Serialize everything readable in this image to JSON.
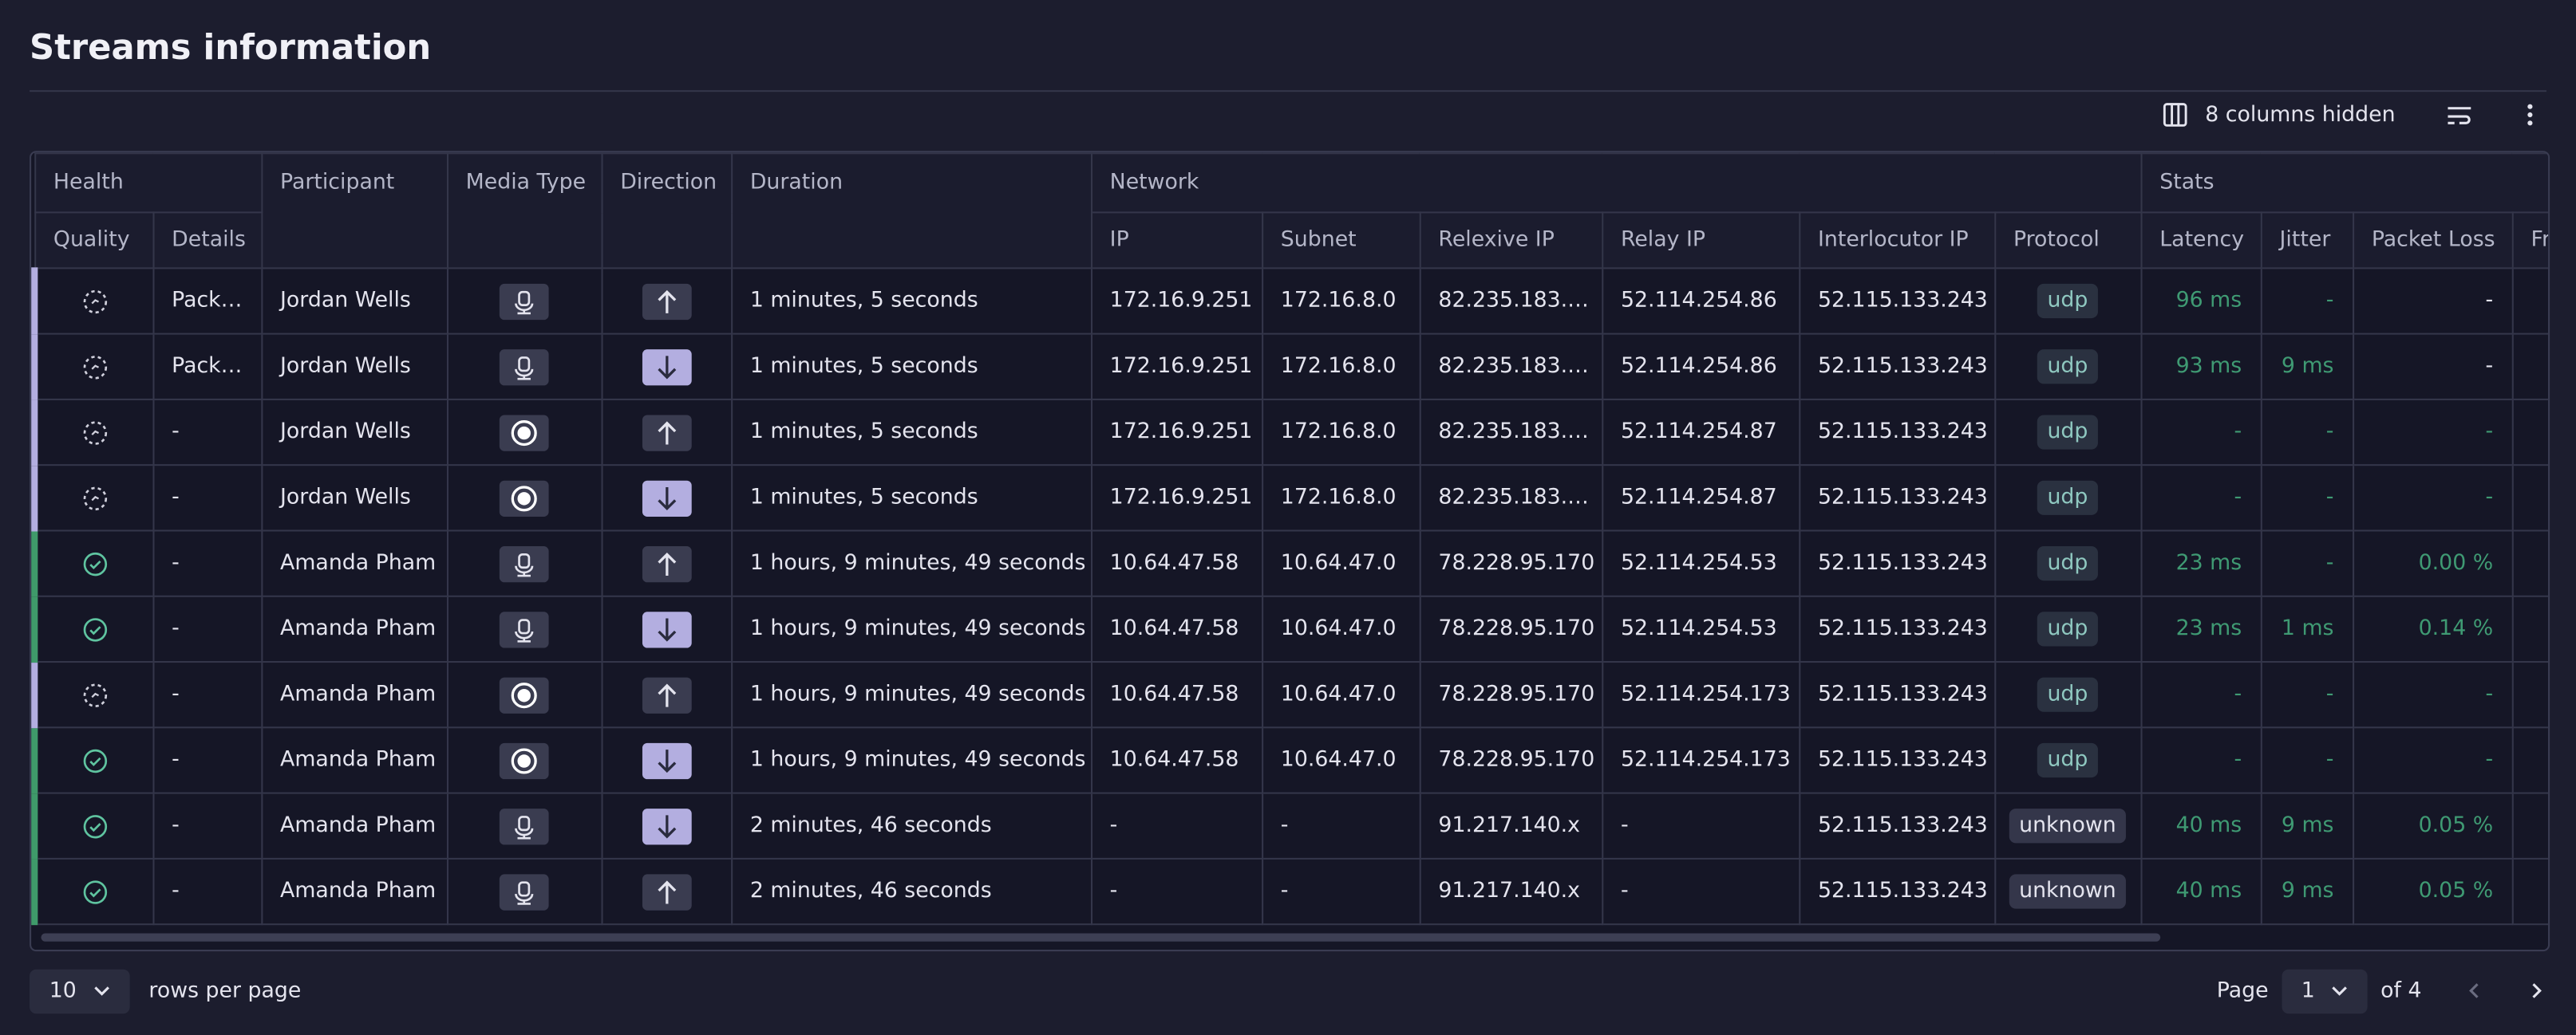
{
  "header": {
    "title": "Streams information"
  },
  "toolbar": {
    "hidden_columns": "8 columns hidden"
  },
  "table": {
    "groups": [
      "Health",
      "Network",
      "Stats"
    ],
    "columns": [
      "Quality",
      "Details",
      "Participant",
      "Media Type",
      "Direction",
      "Duration",
      "IP",
      "Subnet",
      "Relexive IP",
      "Relay IP",
      "Interlocutor IP",
      "Protocol",
      "Latency",
      "Jitter",
      "Packet Loss",
      "Fr"
    ],
    "rows": [
      [
        "Pack…",
        "Jordan Wells",
        "1 minutes, 5 seconds",
        "172.16.9.251",
        "172.16.8.0",
        "82.235.183.…",
        "52.114.254.86",
        "52.115.133.243",
        "udp",
        "96 ms",
        "-",
        "-"
      ],
      [
        "Pack…",
        "Jordan Wells",
        "1 minutes, 5 seconds",
        "172.16.9.251",
        "172.16.8.0",
        "82.235.183.…",
        "52.114.254.86",
        "52.115.133.243",
        "udp",
        "93 ms",
        "9 ms",
        "-"
      ],
      [
        "-",
        "Jordan Wells",
        "1 minutes, 5 seconds",
        "172.16.9.251",
        "172.16.8.0",
        "82.235.183.…",
        "52.114.254.87",
        "52.115.133.243",
        "udp",
        "-",
        "-",
        "-"
      ],
      [
        "-",
        "Jordan Wells",
        "1 minutes, 5 seconds",
        "172.16.9.251",
        "172.16.8.0",
        "82.235.183.…",
        "52.114.254.87",
        "52.115.133.243",
        "udp",
        "-",
        "-",
        "-"
      ],
      [
        "-",
        "Amanda Pham",
        "1 hours, 9 minutes, 49 seconds",
        "10.64.47.58",
        "10.64.47.0",
        "78.228.95.170",
        "52.114.254.53",
        "52.115.133.243",
        "udp",
        "23 ms",
        "-",
        "0.00 %"
      ],
      [
        "-",
        "Amanda Pham",
        "1 hours, 9 minutes, 49 seconds",
        "10.64.47.58",
        "10.64.47.0",
        "78.228.95.170",
        "52.114.254.53",
        "52.115.133.243",
        "udp",
        "23 ms",
        "1 ms",
        "0.14 %"
      ],
      [
        "-",
        "Amanda Pham",
        "1 hours, 9 minutes, 49 seconds",
        "10.64.47.58",
        "10.64.47.0",
        "78.228.95.170",
        "52.114.254.173",
        "52.115.133.243",
        "udp",
        "-",
        "-",
        "-"
      ],
      [
        "-",
        "Amanda Pham",
        "1 hours, 9 minutes, 49 seconds",
        "10.64.47.58",
        "10.64.47.0",
        "78.228.95.170",
        "52.114.254.173",
        "52.115.133.243",
        "udp",
        "-",
        "-",
        "-"
      ],
      [
        "-",
        "Amanda Pham",
        "2 minutes, 46 seconds",
        "-",
        "-",
        "91.217.140.x",
        "-",
        "52.115.133.243",
        "unknown",
        "40 ms",
        "9 ms",
        "0.05 %"
      ],
      [
        "-",
        "Amanda Pham",
        "2 minutes, 46 seconds",
        "-",
        "-",
        "91.217.140.x",
        "-",
        "52.115.133.243",
        "unknown",
        "40 ms",
        "9 ms",
        "0.05 %"
      ]
    ]
  },
  "footer": {
    "page_size": "10",
    "page_size_label": "rows per page",
    "page_label": "Page",
    "page": "1",
    "page_count": "of 4"
  }
}
